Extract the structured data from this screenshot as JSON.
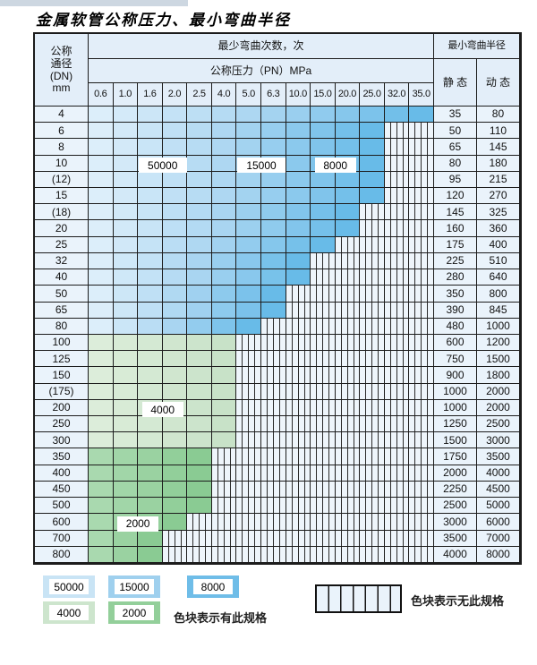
{
  "title": "金属软管公称压力、最小弯曲半径",
  "table": {
    "dn_header_lines": [
      "公称",
      "通径",
      "(DN)",
      "mm"
    ],
    "bend_cycles_header": "最少弯曲次数，次",
    "pressure_header": "公称压力（PN）MPa",
    "radius_header": "最小弯曲半径",
    "static_label": "静 态",
    "dynamic_label": "动 态",
    "pressures": [
      "0.6",
      "1.0",
      "1.6",
      "2.0",
      "2.5",
      "4.0",
      "5.0",
      "6.3",
      "10.0",
      "15.0",
      "20.0",
      "25.0",
      "32.0",
      "35.0"
    ],
    "rows": [
      {
        "dn": "4",
        "spec_through": "35.0",
        "band": "blue",
        "static": "35",
        "dynamic": "80"
      },
      {
        "dn": "6",
        "spec_through": "25.0",
        "band": "blue",
        "static": "50",
        "dynamic": "110"
      },
      {
        "dn": "8",
        "spec_through": "25.0",
        "band": "blue",
        "static": "65",
        "dynamic": "145"
      },
      {
        "dn": "10",
        "spec_through": "25.0",
        "band": "blue",
        "static": "80",
        "dynamic": "180"
      },
      {
        "dn": "(12)",
        "spec_through": "25.0",
        "band": "blue",
        "static": "95",
        "dynamic": "215"
      },
      {
        "dn": "15",
        "spec_through": "25.0",
        "band": "blue",
        "static": "120",
        "dynamic": "270"
      },
      {
        "dn": "(18)",
        "spec_through": "20.0",
        "band": "blue",
        "static": "145",
        "dynamic": "325"
      },
      {
        "dn": "20",
        "spec_through": "20.0",
        "band": "blue",
        "static": "160",
        "dynamic": "360"
      },
      {
        "dn": "25",
        "spec_through": "15.0",
        "band": "blue",
        "static": "175",
        "dynamic": "400"
      },
      {
        "dn": "32",
        "spec_through": "10.0",
        "band": "blue",
        "static": "225",
        "dynamic": "510"
      },
      {
        "dn": "40",
        "spec_through": "10.0",
        "band": "blue",
        "static": "280",
        "dynamic": "640"
      },
      {
        "dn": "50",
        "spec_through": "6.3",
        "band": "blue",
        "static": "350",
        "dynamic": "800"
      },
      {
        "dn": "65",
        "spec_through": "6.3",
        "band": "blue",
        "static": "390",
        "dynamic": "845"
      },
      {
        "dn": "80",
        "spec_through": "5.0",
        "band": "blue",
        "static": "480",
        "dynamic": "1000"
      },
      {
        "dn": "100",
        "spec_through": "4.0",
        "band": "green-light",
        "static": "600",
        "dynamic": "1200"
      },
      {
        "dn": "125",
        "spec_through": "4.0",
        "band": "green-light",
        "static": "750",
        "dynamic": "1500"
      },
      {
        "dn": "150",
        "spec_through": "4.0",
        "band": "green-light",
        "static": "900",
        "dynamic": "1800"
      },
      {
        "dn": "(175)",
        "spec_through": "4.0",
        "band": "green-light",
        "static": "1000",
        "dynamic": "2000"
      },
      {
        "dn": "200",
        "spec_through": "4.0",
        "band": "green-light",
        "static": "1000",
        "dynamic": "2000"
      },
      {
        "dn": "250",
        "spec_through": "4.0",
        "band": "green-light",
        "static": "1250",
        "dynamic": "2500"
      },
      {
        "dn": "300",
        "spec_through": "4.0",
        "band": "green-light",
        "static": "1500",
        "dynamic": "3000"
      },
      {
        "dn": "350",
        "spec_through": "2.5",
        "band": "green-dark",
        "static": "1750",
        "dynamic": "3500"
      },
      {
        "dn": "400",
        "spec_through": "2.5",
        "band": "green-dark",
        "static": "2000",
        "dynamic": "4000"
      },
      {
        "dn": "450",
        "spec_through": "2.5",
        "band": "green-dark",
        "static": "2250",
        "dynamic": "4500"
      },
      {
        "dn": "500",
        "spec_through": "2.5",
        "band": "green-dark",
        "static": "2500",
        "dynamic": "5000"
      },
      {
        "dn": "600",
        "spec_through": "2.0",
        "band": "green-dark",
        "static": "3000",
        "dynamic": "6000"
      },
      {
        "dn": "700",
        "spec_through": "1.6",
        "band": "green-dark",
        "static": "3500",
        "dynamic": "7000"
      },
      {
        "dn": "800",
        "spec_through": "1.6",
        "band": "green-dark",
        "static": "4000",
        "dynamic": "8000"
      }
    ],
    "cycle_labels": [
      {
        "text": "50000",
        "row_dn": "10",
        "between_cols": [
          "1.6",
          "2.0"
        ]
      },
      {
        "text": "15000",
        "row_dn": "10",
        "between_cols": [
          "5.0",
          "6.3"
        ]
      },
      {
        "text": "8000",
        "row_dn": "10",
        "between_cols": [
          "15.0",
          "20.0"
        ]
      },
      {
        "text": "4000",
        "row_dn": "200",
        "between_cols": [
          "1.6",
          "2.0"
        ]
      },
      {
        "text": "2000",
        "row_dn": "600",
        "between_cols": [
          "1.0",
          "1.6"
        ]
      }
    ]
  },
  "legend": {
    "items": [
      {
        "value": "50000",
        "color": "#c9e4f5"
      },
      {
        "value": "15000",
        "color": "#9fd0ee"
      },
      {
        "value": "8000",
        "color": "#6fbde8"
      },
      {
        "value": "4000",
        "color": "#cde5cd"
      },
      {
        "value": "2000",
        "color": "#93cf9a"
      }
    ],
    "has_spec_text": "色块表示有此规格",
    "no_spec_text": "色块表示无此规格"
  },
  "colors": {
    "blue_stops": [
      "#dceefa",
      "#a9d5f1",
      "#68bbe8"
    ],
    "green_light_stops": [
      "#dcedda",
      "#c8e2c8"
    ],
    "green_dark_stops": [
      "#a9d9af",
      "#8acb93"
    ],
    "hatch_bg": "#eef5fb",
    "header_bg": "#e3eef9",
    "grid_line": "#1c1c1c"
  }
}
